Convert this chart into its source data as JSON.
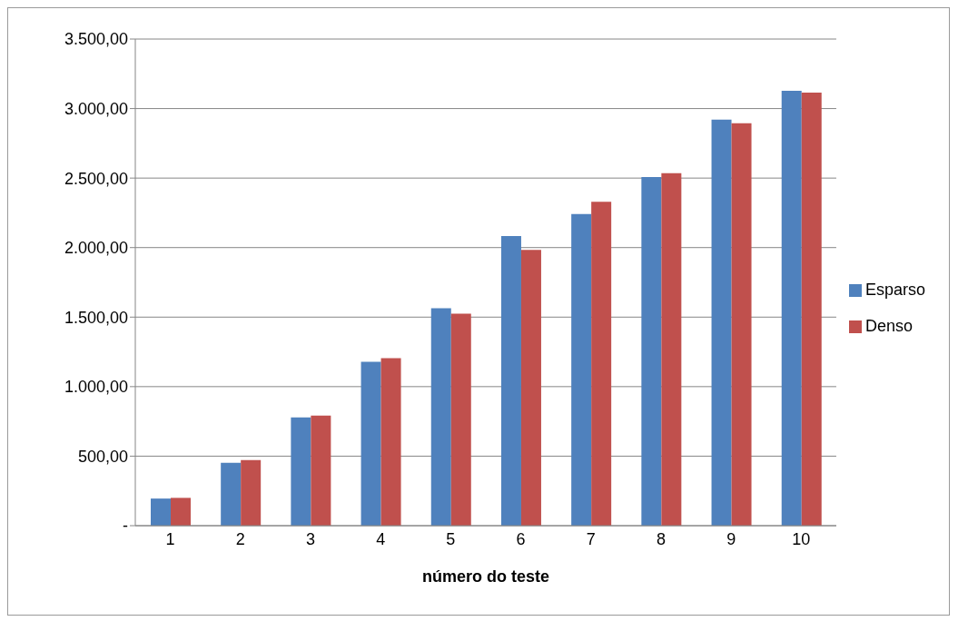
{
  "chart_data": {
    "type": "bar",
    "xlabel": "número do teste",
    "categories": [
      "1",
      "2",
      "3",
      "4",
      "5",
      "6",
      "7",
      "8",
      "9",
      "10"
    ],
    "series": [
      {
        "name": "Esparso",
        "color": "#4f81bd",
        "values": [
          195,
          452,
          778,
          1178,
          1564,
          2083,
          2242,
          2508,
          2921,
          3127
        ]
      },
      {
        "name": "Denso",
        "color": "#c0504d",
        "values": [
          200,
          472,
          792,
          1204,
          1524,
          1983,
          2329,
          2535,
          2894,
          3114
        ]
      }
    ],
    "ylim": [
      0,
      3500
    ],
    "yticks": [
      {
        "value": 0,
        "label": "-"
      },
      {
        "value": 500,
        "label": "500,00"
      },
      {
        "value": 1000,
        "label": "1.000,00"
      },
      {
        "value": 1500,
        "label": "1.500,00"
      },
      {
        "value": 2000,
        "label": "2.000,00"
      },
      {
        "value": 2500,
        "label": "2.500,00"
      },
      {
        "value": 3000,
        "label": "3.000,00"
      },
      {
        "value": 3500,
        "label": "3.500,00"
      }
    ],
    "grid": "y",
    "legend": "right"
  }
}
